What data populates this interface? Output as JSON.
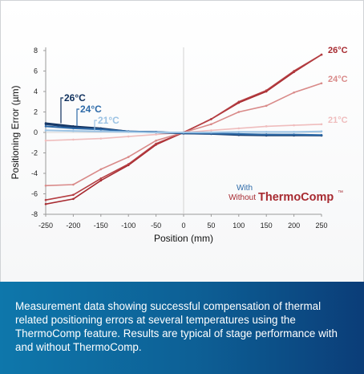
{
  "chart_data": {
    "type": "line",
    "xlabel": "Position (mm)",
    "ylabel": "Positioning Error (µm)",
    "xlim": [
      -250,
      250
    ],
    "ylim": [
      -8,
      8
    ],
    "x_ticks": [
      "-250",
      "-200",
      "-150",
      "-100",
      "-50",
      "0",
      "50",
      "100",
      "150",
      "200",
      "250"
    ],
    "y_ticks": [
      "8",
      "6",
      "4",
      "2",
      "0",
      "-2",
      "-4",
      "-6",
      "-8"
    ],
    "grid": false,
    "x": [
      -250,
      -200,
      -150,
      -100,
      -50,
      0,
      50,
      100,
      150,
      200,
      250
    ],
    "series": [
      {
        "temperature": "26°C",
        "compensated": false,
        "color": "#a72a30",
        "values": [
          -7.0,
          -6.5,
          -4.7,
          -3.2,
          -1.2,
          0.0,
          1.3,
          2.9,
          4.0,
          5.9,
          7.6
        ]
      },
      {
        "temperature": "26°C",
        "compensated": false,
        "color": "#b53e42",
        "values": [
          -6.6,
          -6.1,
          -4.5,
          -3.1,
          -1.1,
          0.0,
          1.3,
          3.0,
          4.1,
          6.0,
          7.6
        ]
      },
      {
        "temperature": "24°C",
        "compensated": false,
        "color": "#d98a89",
        "values": [
          -5.2,
          -5.1,
          -3.6,
          -2.4,
          -0.8,
          0.0,
          0.8,
          2.0,
          2.6,
          3.9,
          4.8
        ]
      },
      {
        "temperature": "21°C",
        "compensated": false,
        "color": "#efbdbd",
        "values": [
          -0.8,
          -0.7,
          -0.6,
          -0.4,
          -0.2,
          0.0,
          0.2,
          0.4,
          0.6,
          0.7,
          0.8
        ]
      },
      {
        "temperature": "26°C",
        "compensated": true,
        "color": "#0e2f5c",
        "values": [
          0.9,
          0.6,
          0.4,
          0.1,
          0.05,
          -0.1,
          -0.1,
          -0.2,
          -0.2,
          -0.25,
          -0.3
        ]
      },
      {
        "temperature": "26°C",
        "compensated": true,
        "color": "#1b3f70",
        "values": [
          0.8,
          0.5,
          0.35,
          0.1,
          0.0,
          -0.1,
          -0.15,
          -0.25,
          -0.3,
          -0.3,
          -0.3
        ]
      },
      {
        "temperature": "24°C",
        "compensated": true,
        "color": "#2d6aa8",
        "values": [
          0.6,
          0.4,
          0.3,
          0.1,
          0.05,
          -0.05,
          -0.1,
          -0.15,
          -0.2,
          -0.2,
          -0.25
        ]
      },
      {
        "temperature": "21°C",
        "compensated": true,
        "color": "#9cc3e4",
        "values": [
          0.2,
          0.15,
          0.1,
          0.05,
          0.0,
          0.0,
          0.0,
          0.05,
          0.05,
          0.05,
          0.1
        ]
      }
    ],
    "end_labels": [
      {
        "text": "26°C",
        "color": "#a72a30",
        "at_y": 7.6
      },
      {
        "text": "24°C",
        "color": "#d98a89",
        "at_y": 4.8
      },
      {
        "text": "21°C",
        "color": "#efbdbd",
        "at_y": 0.8
      }
    ],
    "start_labels": [
      {
        "text": "26°C",
        "color": "#0e2f5c",
        "at_y": 0.9
      },
      {
        "text": "24°C",
        "color": "#2d6aa8",
        "at_y": 0.6
      },
      {
        "text": "21°C",
        "color": "#9cc3e4",
        "at_y": 0.2
      }
    ],
    "legend": {
      "with_label": "With",
      "without_label": "Without",
      "brand": "ThermoComp",
      "trademark": "™",
      "with_color": "#2d6aa8",
      "without_color": "#a72a30",
      "placement": "lower-right"
    }
  },
  "caption": {
    "text": "Measurement data showing successful compensation of thermal related positioning errors at several temperatures using the ThermoComp feature. Results are typical of stage performance with and without ThermoComp."
  }
}
